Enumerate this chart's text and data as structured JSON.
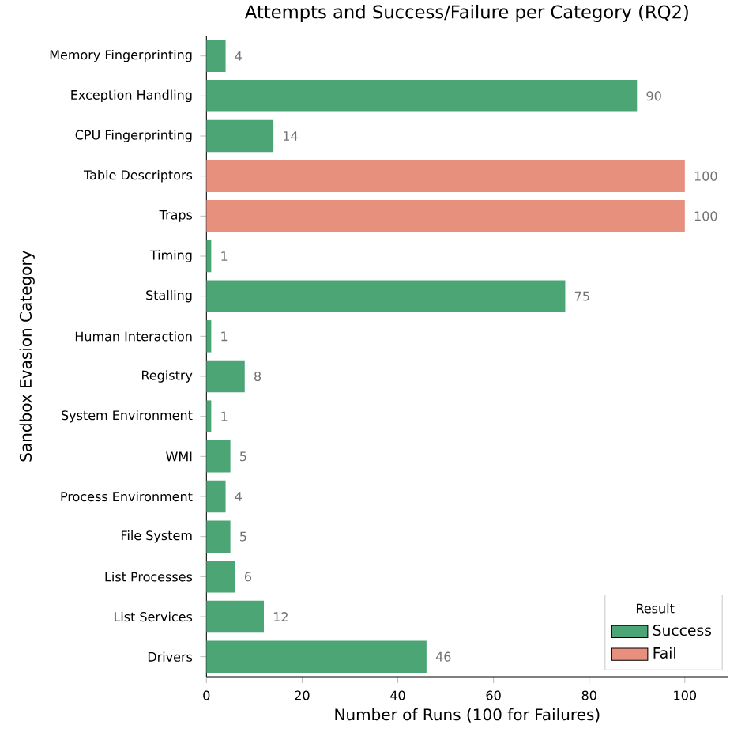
{
  "chart_data": {
    "type": "bar",
    "orientation": "horizontal",
    "title": "Attempts and Success/Failure per Category (RQ2)",
    "xlabel": "Number of Runs (100 for Failures)",
    "ylabel": "Sandbox Evasion Category",
    "categories": [
      "Memory Fingerprinting",
      "Exception Handling",
      "CPU Fingerprinting",
      "Table Descriptors",
      "Traps",
      "Timing",
      "Stalling",
      "Human Interaction",
      "Registry",
      "System Environment",
      "WMI",
      "Process Environment",
      "File System",
      "List Processes",
      "List Services",
      "Drivers"
    ],
    "series": [
      {
        "name": "Success",
        "color": "#4ba574",
        "values": [
          4,
          90,
          14,
          null,
          null,
          1,
          75,
          1,
          8,
          1,
          5,
          4,
          5,
          6,
          12,
          46
        ]
      },
      {
        "name": "Fail",
        "color": "#e8907e",
        "values": [
          null,
          null,
          null,
          100,
          100,
          null,
          null,
          null,
          null,
          null,
          null,
          null,
          null,
          null,
          null,
          null
        ]
      }
    ],
    "xlim": [
      0,
      109
    ],
    "xticks": [
      0,
      20,
      40,
      60,
      80,
      100
    ],
    "data_labels": true,
    "legend": "bottom right",
    "legend_title": "Result"
  }
}
